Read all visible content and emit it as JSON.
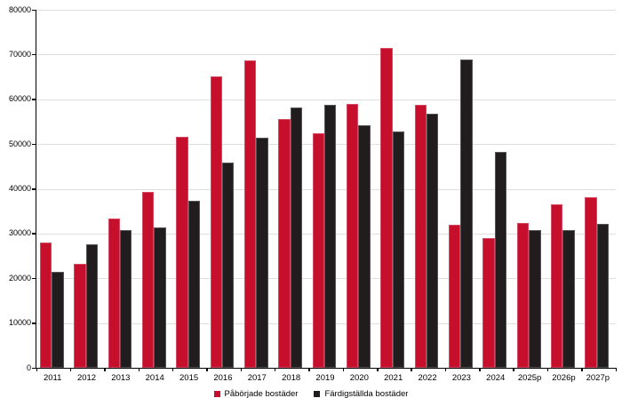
{
  "chart_data": {
    "type": "bar",
    "title": "",
    "xlabel": "",
    "ylabel": "",
    "categories": [
      "2011",
      "2012",
      "2013",
      "2014",
      "2015",
      "2016",
      "2017",
      "2018",
      "2019",
      "2020",
      "2021",
      "2022",
      "2023",
      "2024",
      "2025p",
      "2026p",
      "2027p"
    ],
    "series": [
      {
        "name": "Påbörjade bostäder",
        "color": "#C60F2D",
        "values": [
          28000,
          23200,
          33300,
          39300,
          51700,
          65100,
          68700,
          55600,
          52400,
          59000,
          71500,
          58800,
          32000,
          29000,
          32300,
          36600,
          38200
        ]
      },
      {
        "name": "Färdigställda bostäder",
        "color": "#211D1E",
        "values": [
          21500,
          27600,
          30700,
          31300,
          37400,
          45800,
          51500,
          58200,
          58700,
          54100,
          52900,
          56700,
          68900,
          48200,
          30700,
          30800,
          32200
        ]
      }
    ],
    "ylim": [
      0,
      80000
    ],
    "ytick_step": 10000,
    "yticklabels": [
      "0",
      "10000",
      "20000",
      "30000",
      "40000",
      "50000",
      "60000",
      "70000",
      "80000"
    ],
    "grid": true,
    "legend_position": "bottom-center"
  },
  "colors": {
    "background": "#FFFFFF",
    "grid": "#DEDEDE",
    "axis": "#000000",
    "text": "#000000"
  }
}
